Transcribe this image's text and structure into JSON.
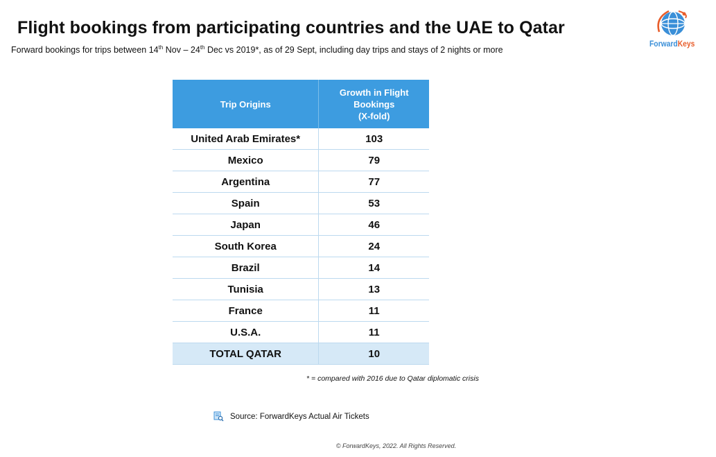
{
  "title": "Flight bookings from participating countries and the UAE to Qatar",
  "subtitle": {
    "part1": "Forward bookings for trips between 14",
    "sup1": "th",
    "part2": " Nov – 24",
    "sup2": "th",
    "part3": " Dec vs 2019*, as of 29 Sept, including day trips and stays of 2 nights or more"
  },
  "logo": {
    "text_forward": "Forward",
    "text_keys": "Keys",
    "colors": {
      "blue": "#3a8fd8",
      "orange": "#e85d2b"
    }
  },
  "table": {
    "header_color": "#3d9ce0",
    "total_row_color": "#d6e9f7",
    "col1_header": "Trip Origins",
    "col2_header_lines": [
      "Growth in Flight",
      "Bookings",
      "(X-fold)"
    ]
  },
  "chart_data": {
    "type": "table",
    "columns": [
      "Trip Origins",
      "Growth in Flight Bookings (X-fold)"
    ],
    "rows": [
      {
        "origin": "United Arab Emirates*",
        "growth": "103"
      },
      {
        "origin": "Mexico",
        "growth": "79"
      },
      {
        "origin": "Argentina",
        "growth": "77"
      },
      {
        "origin": "Spain",
        "growth": "53"
      },
      {
        "origin": "Japan",
        "growth": "46"
      },
      {
        "origin": "South Korea",
        "growth": "24"
      },
      {
        "origin": "Brazil",
        "growth": "14"
      },
      {
        "origin": "Tunisia",
        "growth": "13"
      },
      {
        "origin": "France",
        "growth": "11"
      },
      {
        "origin": "U.S.A.",
        "growth": "11"
      }
    ],
    "total": {
      "origin": "TOTAL QATAR",
      "growth": "10"
    }
  },
  "footnote": "* = compared with 2016 due to Qatar diplomatic crisis",
  "source": "Source: ForwardKeys Actual Air Tickets",
  "copyright": "© ForwardKeys, 2022. All Rights Reserved."
}
